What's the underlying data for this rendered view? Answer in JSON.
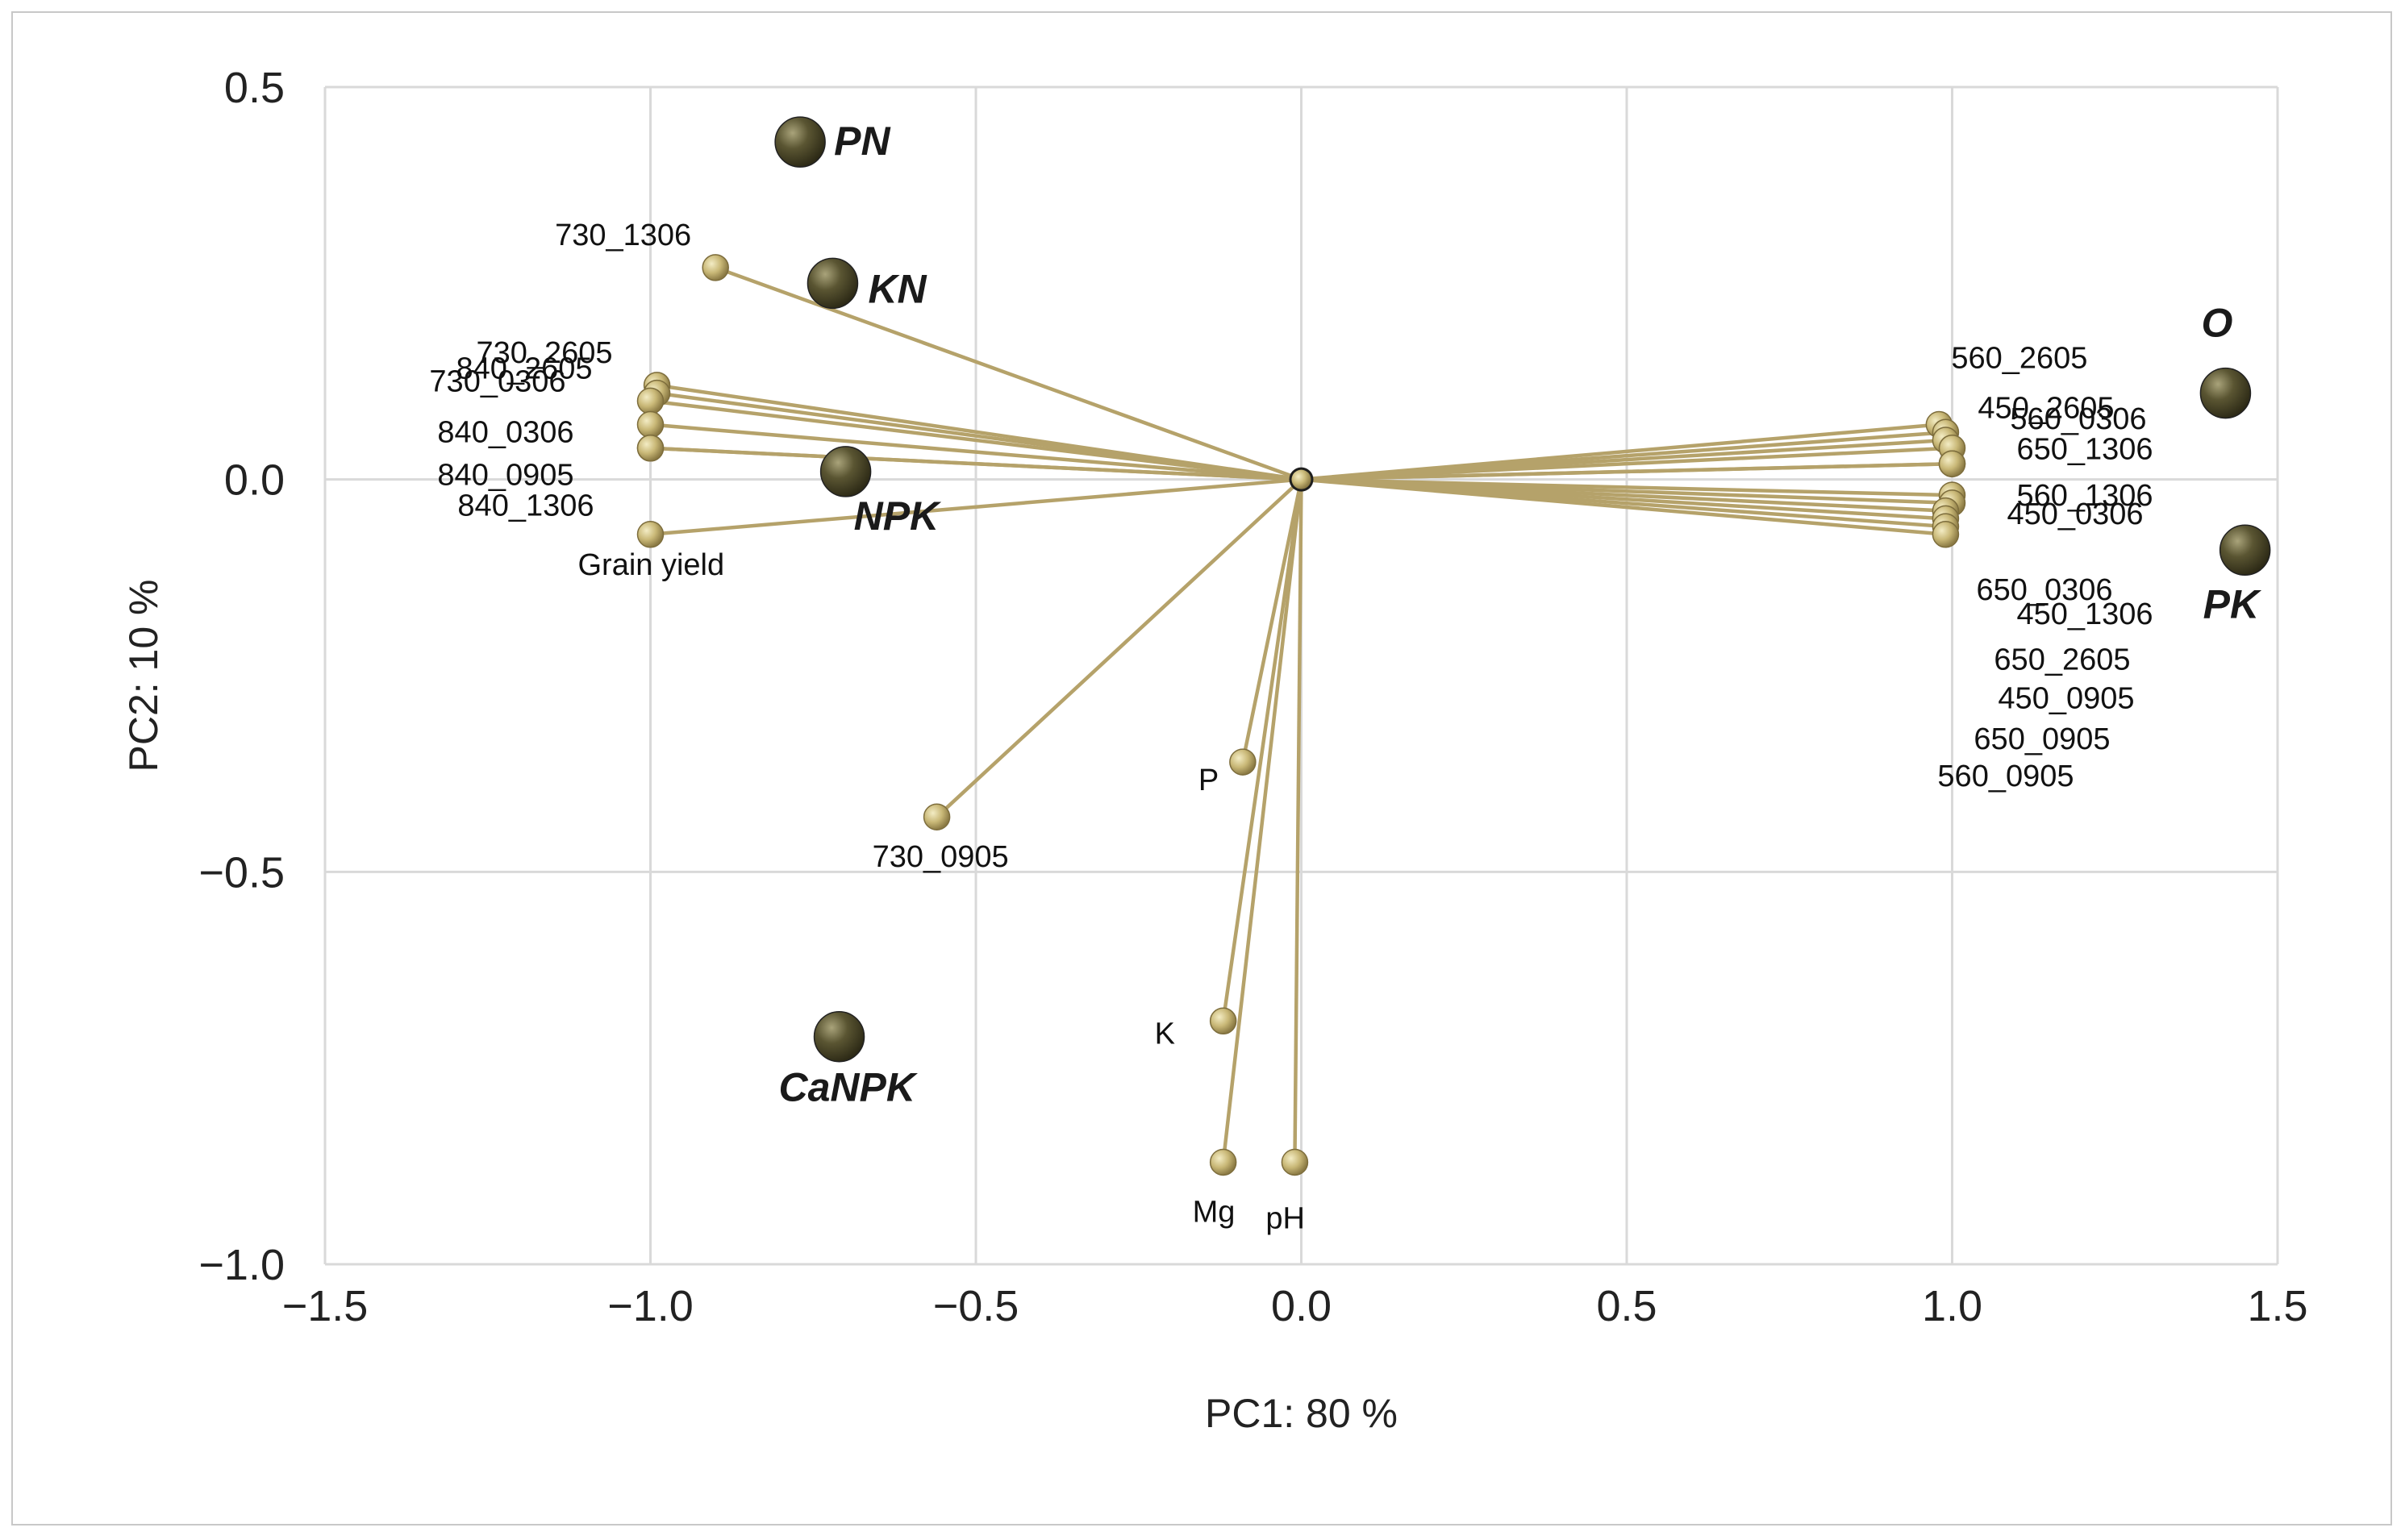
{
  "chart_data": {
    "type": "scatter",
    "title": "",
    "xlabel": "PC1: 80 %",
    "ylabel": "PC2: 10 %",
    "xlim": [
      -1.5,
      1.5
    ],
    "ylim": [
      -1.0,
      0.5
    ],
    "xticks": [
      -1.5,
      -1.0,
      -0.5,
      0.0,
      0.5,
      1.0,
      1.5
    ],
    "xtick_labels": [
      "−1.5",
      "−1.0",
      "−0.5",
      "0.0",
      "0.5",
      "1.0",
      "1.5"
    ],
    "yticks": [
      0.5,
      0.0,
      -0.5,
      -1.0
    ],
    "ytick_labels": [
      "0.5",
      "0.0",
      "−0.5",
      "−1.0"
    ],
    "grid": true,
    "colors": {
      "vector": "#b5a26a",
      "vector_point": "#c9b877",
      "score_point": "#4e4a2c",
      "grid": "#d9d9d9"
    },
    "series": [
      {
        "name": "loadings",
        "points": [
          {
            "label": "730_1306",
            "x": -0.9,
            "y": 0.27
          },
          {
            "label": "730_2605",
            "x": -0.99,
            "y": 0.12
          },
          {
            "label": "840_2605",
            "x": -0.99,
            "y": 0.11
          },
          {
            "label": "730_0306",
            "x": -1.0,
            "y": 0.1
          },
          {
            "label": "840_0306",
            "x": -1.0,
            "y": 0.07
          },
          {
            "label": "840_0905",
            "x": -1.0,
            "y": 0.04
          },
          {
            "label": "840_1306",
            "x": -1.0,
            "y": 0.04
          },
          {
            "label": "Grain yield",
            "x": -1.0,
            "y": -0.07
          },
          {
            "label": "730_0905",
            "x": -0.56,
            "y": -0.43
          },
          {
            "label": "P",
            "x": -0.09,
            "y": -0.36
          },
          {
            "label": "K",
            "x": -0.12,
            "y": -0.69
          },
          {
            "label": "Mg",
            "x": -0.12,
            "y": -0.87
          },
          {
            "label": "pH",
            "x": -0.01,
            "y": -0.87
          },
          {
            "label": "560_2605",
            "x": 0.98,
            "y": 0.07
          },
          {
            "label": "450_2605",
            "x": 0.99,
            "y": 0.06
          },
          {
            "label": "560_0306",
            "x": 0.99,
            "y": 0.05
          },
          {
            "label": "650_1306",
            "x": 1.0,
            "y": 0.04
          },
          {
            "label": "560_1306",
            "x": 1.0,
            "y": 0.02
          },
          {
            "label": "450_0306",
            "x": 1.0,
            "y": 0.02
          },
          {
            "label": "650_0306",
            "x": 1.0,
            "y": -0.02
          },
          {
            "label": "450_1306",
            "x": 1.0,
            "y": -0.03
          },
          {
            "label": "650_2605",
            "x": 0.99,
            "y": -0.04
          },
          {
            "label": "450_0905",
            "x": 0.99,
            "y": -0.05
          },
          {
            "label": "650_0905",
            "x": 0.99,
            "y": -0.06
          },
          {
            "label": "560_0905",
            "x": 0.99,
            "y": -0.07
          }
        ]
      },
      {
        "name": "scores",
        "points": [
          {
            "label": "PN",
            "x": -0.77,
            "y": 0.43
          },
          {
            "label": "KN",
            "x": -0.72,
            "y": 0.25
          },
          {
            "label": "NPK",
            "x": -0.7,
            "y": 0.01
          },
          {
            "label": "CaNPK",
            "x": -0.71,
            "y": -0.71
          },
          {
            "label": "O",
            "x": 1.42,
            "y": 0.11
          },
          {
            "label": "PK",
            "x": 1.45,
            "y": -0.09
          }
        ]
      }
    ]
  }
}
